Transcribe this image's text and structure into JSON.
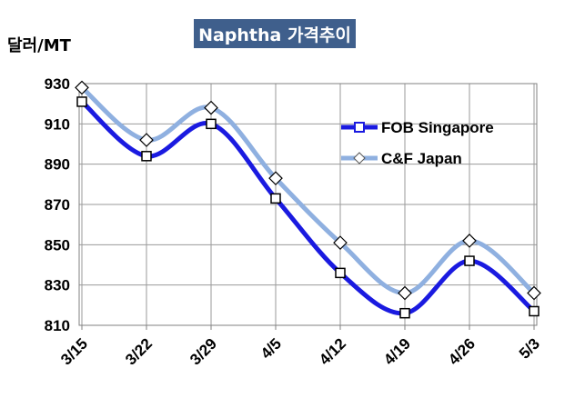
{
  "chart_data": {
    "type": "line",
    "title": "Naphtha 가격추이",
    "ylabel": "달러/MT",
    "xlabel": "",
    "categories": [
      "3/15",
      "3/22",
      "3/29",
      "4/5",
      "4/12",
      "4/19",
      "4/26",
      "5/3"
    ],
    "series": [
      {
        "name": "FOB Singapore",
        "color": "#1a1ae0",
        "marker": "square",
        "values": [
          921,
          894,
          910,
          873,
          836,
          816,
          842,
          817
        ]
      },
      {
        "name": "C&F Japan",
        "color": "#8fb0e0",
        "marker": "diamond",
        "values": [
          928,
          902,
          918,
          883,
          851,
          826,
          852,
          826
        ]
      }
    ],
    "ylim": [
      810,
      930
    ],
    "yticks": [
      "810",
      "830",
      "850",
      "870",
      "890",
      "910",
      "930"
    ],
    "grid": true,
    "legend_position": "top-right"
  }
}
